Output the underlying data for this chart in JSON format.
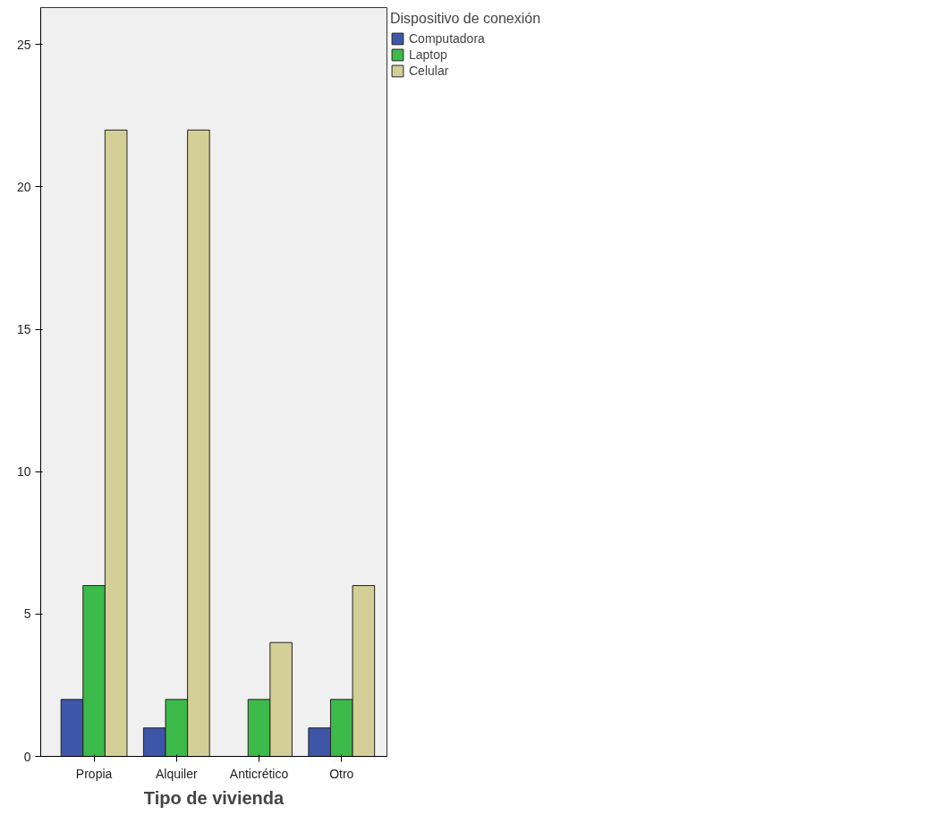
{
  "chart_data": {
    "type": "bar",
    "xlabel": "Tipo de vivienda",
    "legend_title": "Dispositivo de conexión",
    "legend": "top right",
    "grid": false,
    "categories": [
      "Propia",
      "Alquiler",
      "Anticrético",
      "Otro"
    ],
    "series": [
      {
        "name": "Computadora",
        "color": "#3e56a8",
        "values": [
          2,
          1,
          null,
          1
        ]
      },
      {
        "name": "Laptop",
        "color": "#3cba4a",
        "values": [
          6,
          2,
          2,
          2
        ]
      },
      {
        "name": "Celular",
        "color": "#d4cf97",
        "values": [
          22,
          22,
          4,
          6
        ]
      }
    ],
    "ylim": [
      0,
      26.3
    ],
    "yticks": [
      0,
      5,
      10,
      15,
      20,
      25
    ]
  }
}
